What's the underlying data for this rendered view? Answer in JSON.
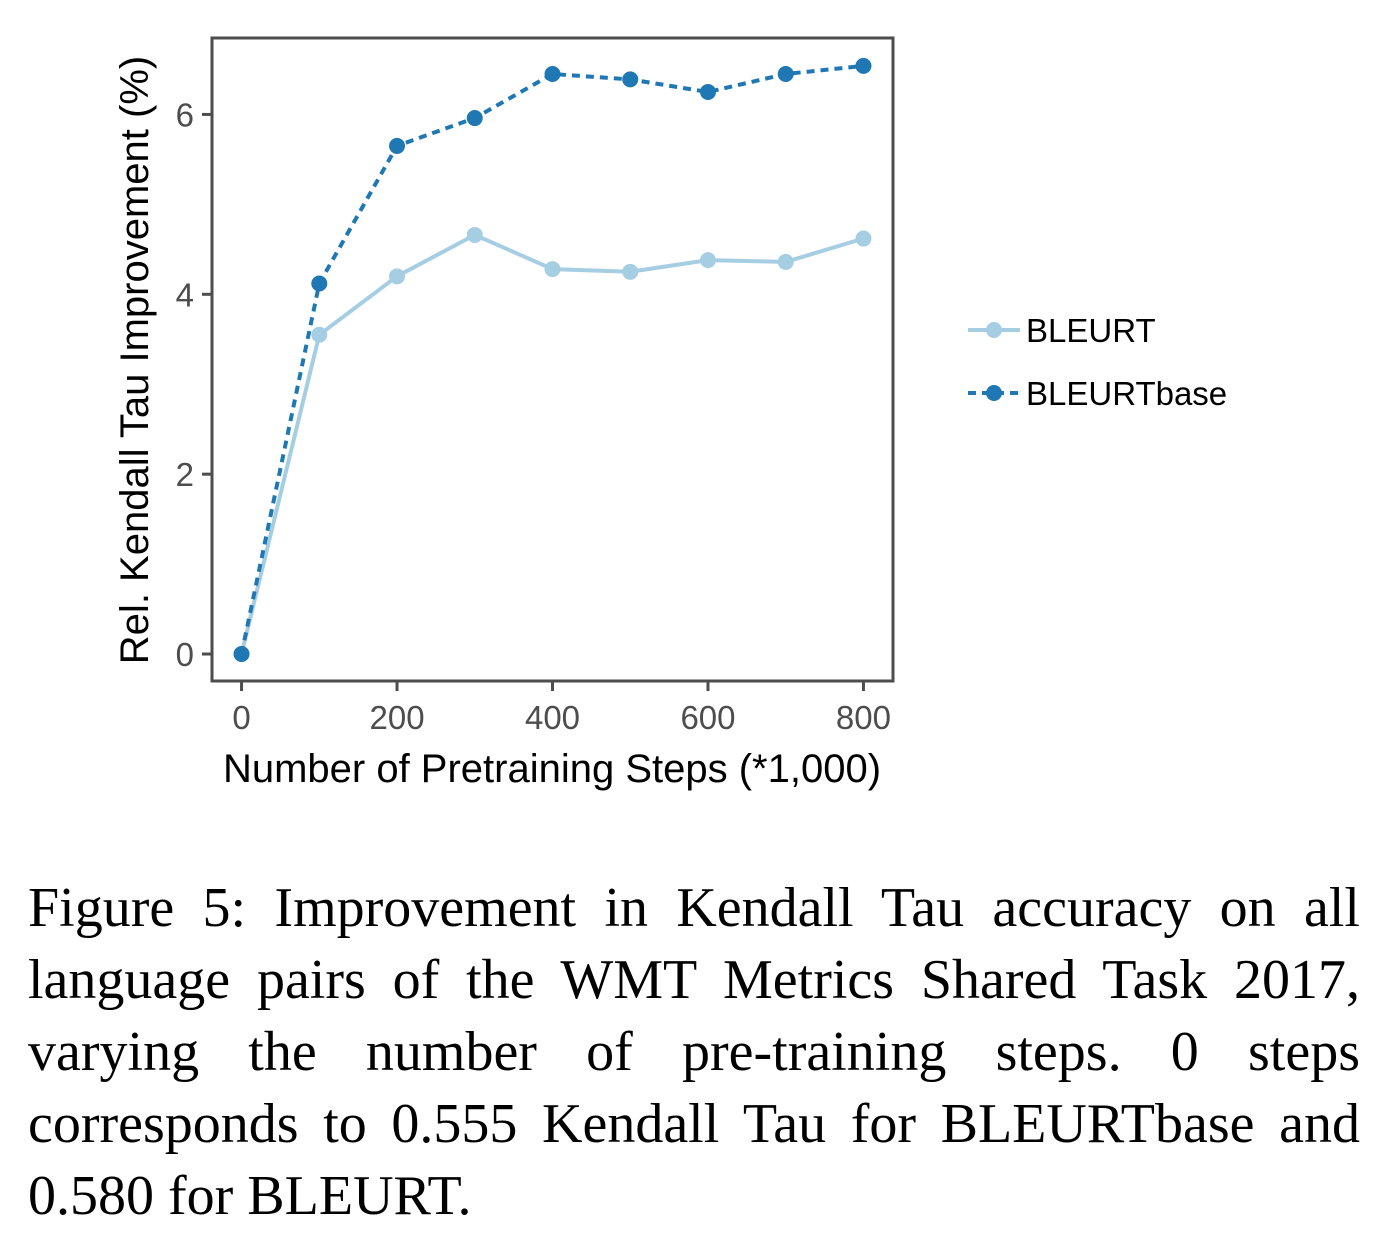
{
  "chart_data": {
    "type": "line",
    "title": "",
    "xlabel": "Number of Pretraining Steps (*1,000)",
    "ylabel": "Rel. Kendall Tau Improvement (%)",
    "x": [
      0,
      100,
      200,
      300,
      400,
      500,
      600,
      700,
      800
    ],
    "x_ticks": [
      "0",
      "200",
      "400",
      "600",
      "800"
    ],
    "y_ticks": [
      "0",
      "2",
      "4",
      "6"
    ],
    "xlim": [
      -38,
      838
    ],
    "ylim": [
      -0.3,
      6.85
    ],
    "grid": false,
    "legend_position": "right",
    "series": [
      {
        "name": "BLEURT",
        "values": [
          0,
          3.55,
          4.2,
          4.66,
          4.28,
          4.25,
          4.38,
          4.36,
          4.62
        ],
        "color": "#a6cee3",
        "line_style": "solid"
      },
      {
        "name": "BLEURTbase",
        "values": [
          0,
          4.12,
          5.65,
          5.96,
          6.45,
          6.39,
          6.25,
          6.45,
          6.54
        ],
        "color": "#1f78b4",
        "line_style": "dashed"
      }
    ]
  },
  "caption": "Figure 5: Improvement in Kendall Tau accuracy on all language pairs of the WMT Metrics Shared Task 2017, varying the number of pre-training steps. 0 steps corresponds to 0.555 Kendall Tau for BLEURTbase and 0.580 for BLEURT."
}
